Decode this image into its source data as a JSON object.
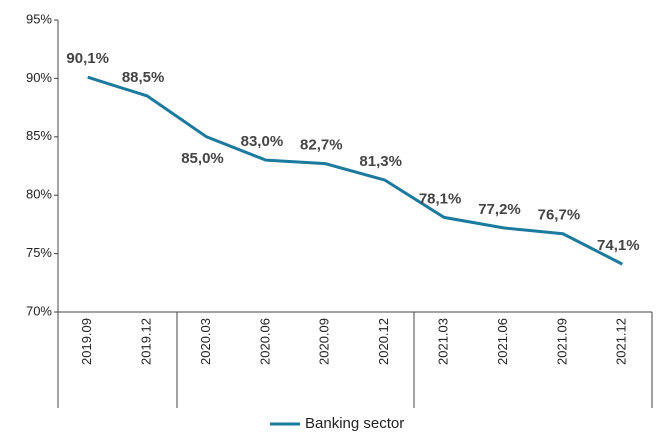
{
  "chart_data": {
    "type": "line",
    "categories": [
      "2019.09",
      "2019.12",
      "2020.03",
      "2020.06",
      "2020.09",
      "2020.12",
      "2021.03",
      "2021.06",
      "2021.09",
      "2021.12"
    ],
    "series": [
      {
        "name": "Banking sector",
        "color": "#1b7a9e",
        "values": [
          90.1,
          88.5,
          85.0,
          83.0,
          82.7,
          81.3,
          78.1,
          77.2,
          76.7,
          74.1
        ],
        "value_labels": [
          "90,1%",
          "88,5%",
          "85,0%",
          "83,0%",
          "82,7%",
          "81,3%",
          "78,1%",
          "77,2%",
          "76,7%",
          "74,1%"
        ]
      }
    ],
    "ylim": [
      70,
      95
    ],
    "yticks": [
      {
        "value": 70,
        "label": "70%"
      },
      {
        "value": 75,
        "label": "75%"
      },
      {
        "value": 80,
        "label": "80%"
      },
      {
        "value": 85,
        "label": "85%"
      },
      {
        "value": 90,
        "label": "90%"
      },
      {
        "value": 95,
        "label": "95%"
      }
    ],
    "legend": "bottom"
  }
}
